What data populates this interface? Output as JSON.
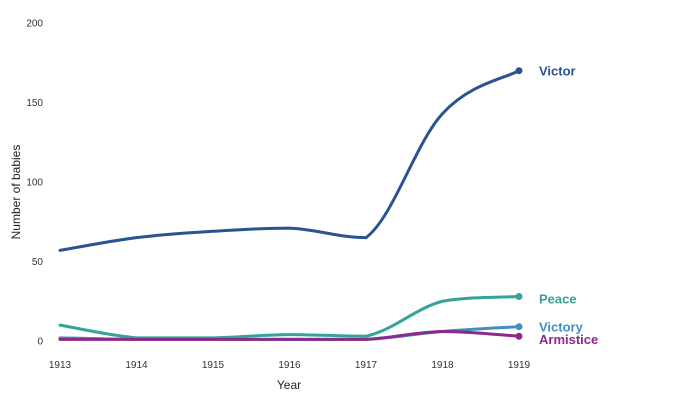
{
  "chart_data": {
    "type": "line",
    "title": "",
    "xlabel": "Year",
    "ylabel": "Number of babies",
    "x": [
      1913,
      1914,
      1915,
      1916,
      1917,
      1918,
      1919
    ],
    "x_tick_labels": [
      "1913",
      "1914",
      "1915",
      "1916",
      "1917",
      "1918",
      "1919"
    ],
    "y_ticks": [
      0,
      50,
      100,
      150,
      200
    ],
    "y_tick_labels": [
      "0",
      "50",
      "100",
      "150",
      "200"
    ],
    "ylim": [
      0,
      200
    ],
    "grid": false,
    "legend": "direct labels at line ends",
    "series": [
      {
        "name": "Victor",
        "color": "#2a5491",
        "values": [
          57,
          65,
          69,
          71,
          65,
          143,
          170
        ]
      },
      {
        "name": "Peace",
        "color": "#35a39b",
        "values": [
          10,
          2,
          2,
          4,
          3,
          25,
          28
        ]
      },
      {
        "name": "Victory",
        "color": "#3f8fc0",
        "values": [
          2,
          1,
          1,
          1,
          1,
          6,
          9
        ]
      },
      {
        "name": "Armistice",
        "color": "#8b2a8c",
        "values": [
          1,
          1,
          1,
          1,
          1,
          6,
          3
        ]
      }
    ]
  }
}
